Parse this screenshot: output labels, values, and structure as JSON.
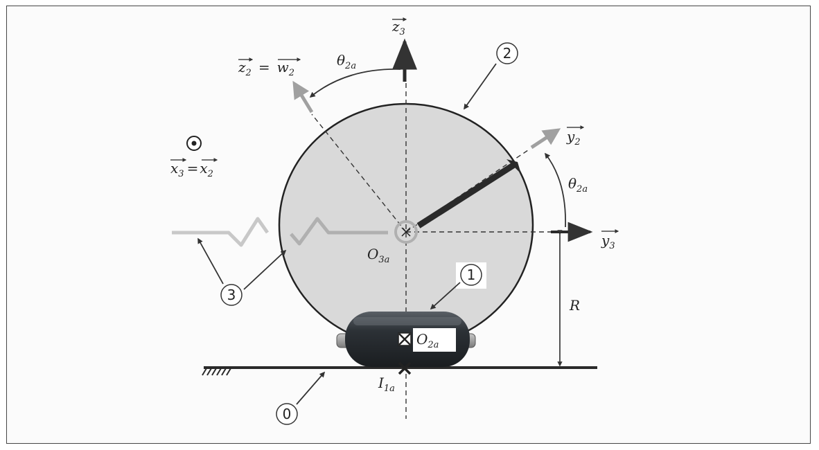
{
  "vectors": {
    "z3": {
      "base": "z",
      "sub": "3"
    },
    "z2": {
      "base": "z",
      "sub": "2"
    },
    "w2": {
      "base": "w",
      "sub": "2"
    },
    "y2": {
      "base": "y",
      "sub": "2"
    },
    "y3": {
      "base": "y",
      "sub": "3"
    },
    "x3": {
      "base": "x",
      "sub": "3"
    },
    "x2": {
      "base": "x",
      "sub": "2"
    },
    "equals": "="
  },
  "angle": {
    "base": "θ",
    "sub": "2a"
  },
  "points": {
    "O3a": {
      "base": "O",
      "sub": "3a"
    },
    "O2a": {
      "base": "O",
      "sub": "2a"
    },
    "I1a": {
      "base": "I",
      "sub": "1a"
    }
  },
  "radius_label": "R",
  "parts": [
    "0",
    "1",
    "2",
    "3"
  ],
  "colors": {
    "wheel_fill": "#d9d9d9",
    "outline": "#222222",
    "arrow_grey": "#a0a0a0",
    "roller": "#2f3439"
  }
}
